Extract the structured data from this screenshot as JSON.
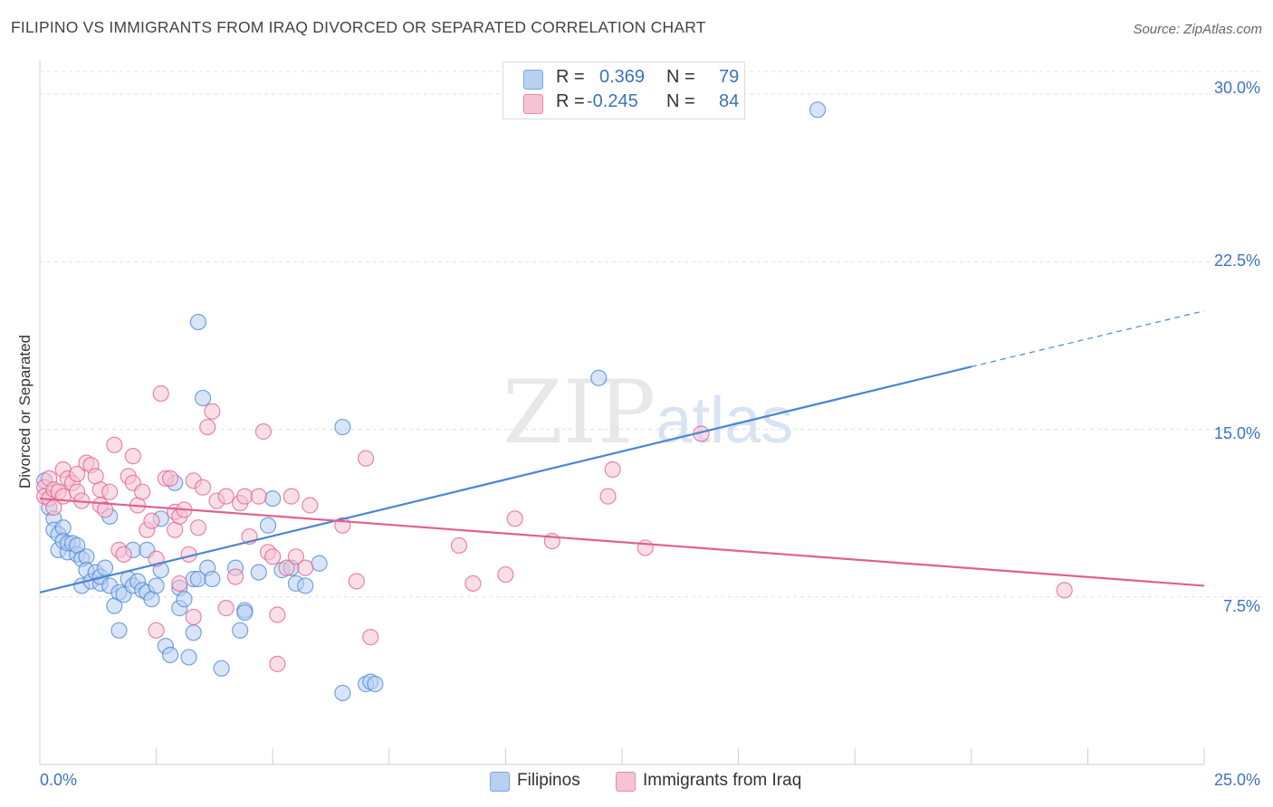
{
  "title": "FILIPINO VS IMMIGRANTS FROM IRAQ DIVORCED OR SEPARATED CORRELATION CHART",
  "source": "Source: ZipAtlas.com",
  "watermark": {
    "zip": "ZIP",
    "atlas": "atlas"
  },
  "legend": {
    "r_label": "R =",
    "n_label": "N =",
    "rows": [
      {
        "name": "Filipinos",
        "r": "0.369",
        "n": "79",
        "color": "#7ba7e0",
        "fill": "#b8d0f2"
      },
      {
        "name": "Immigrants from Iraq",
        "r": "-0.245",
        "n": "84",
        "color": "#e58aa8",
        "fill": "#f6c3d4"
      }
    ]
  },
  "chart_data": {
    "type": "scatter",
    "title": "FILIPINO VS IMMIGRANTS FROM IRAQ DIVORCED OR SEPARATED CORRELATION CHART",
    "xlabel": "",
    "ylabel": "Divorced or Separated",
    "xlim": [
      0,
      25
    ],
    "ylim": [
      0,
      31.5
    ],
    "x_tick_labels": [
      "0.0%",
      "25.0%"
    ],
    "y_tick_values": [
      7.5,
      15.0,
      22.5,
      30.0
    ],
    "y_tick_labels": [
      "7.5%",
      "15.0%",
      "22.5%",
      "30.0%"
    ],
    "grid": "horizontal dashed",
    "legend_position": "top-center",
    "series": [
      {
        "name": "Filipinos",
        "color": "#4a86d4",
        "fill": "#b8d0f2",
        "trend": {
          "x": [
            0,
            20,
            25
          ],
          "y": [
            7.7,
            17.8,
            20.3
          ],
          "solid_until": 20
        },
        "points": [
          [
            0.1,
            12.7
          ],
          [
            0.2,
            11.5
          ],
          [
            0.3,
            11.0
          ],
          [
            0.3,
            10.5
          ],
          [
            0.4,
            10.3
          ],
          [
            0.4,
            9.6
          ],
          [
            0.5,
            10.6
          ],
          [
            0.5,
            10.0
          ],
          [
            0.6,
            9.5
          ],
          [
            0.6,
            9.9
          ],
          [
            0.7,
            9.9
          ],
          [
            0.8,
            9.4
          ],
          [
            0.8,
            9.8
          ],
          [
            0.9,
            8.0
          ],
          [
            0.9,
            9.2
          ],
          [
            1.0,
            9.3
          ],
          [
            1.0,
            8.7
          ],
          [
            1.1,
            8.2
          ],
          [
            1.2,
            8.6
          ],
          [
            1.3,
            8.1
          ],
          [
            1.3,
            8.4
          ],
          [
            1.4,
            8.8
          ],
          [
            1.5,
            8.0
          ],
          [
            1.5,
            11.1
          ],
          [
            1.6,
            7.1
          ],
          [
            1.7,
            6.0
          ],
          [
            1.7,
            7.7
          ],
          [
            1.8,
            7.6
          ],
          [
            1.9,
            8.3
          ],
          [
            2.0,
            9.6
          ],
          [
            2.0,
            8.0
          ],
          [
            2.1,
            8.2
          ],
          [
            2.2,
            7.8
          ],
          [
            2.3,
            7.7
          ],
          [
            2.3,
            9.6
          ],
          [
            2.4,
            7.4
          ],
          [
            2.5,
            8.0
          ],
          [
            2.6,
            8.7
          ],
          [
            2.6,
            11.0
          ],
          [
            2.7,
            5.3
          ],
          [
            2.8,
            4.9
          ],
          [
            2.9,
            12.6
          ],
          [
            3.0,
            7.0
          ],
          [
            3.0,
            7.9
          ],
          [
            3.1,
            7.4
          ],
          [
            3.2,
            4.8
          ],
          [
            3.3,
            8.3
          ],
          [
            3.3,
            5.9
          ],
          [
            3.4,
            8.3
          ],
          [
            3.4,
            19.8
          ],
          [
            3.5,
            16.4
          ],
          [
            3.6,
            8.8
          ],
          [
            3.7,
            8.3
          ],
          [
            3.9,
            4.3
          ],
          [
            4.2,
            8.8
          ],
          [
            4.3,
            6.0
          ],
          [
            4.4,
            6.9
          ],
          [
            4.4,
            6.8
          ],
          [
            4.7,
            8.6
          ],
          [
            4.9,
            10.7
          ],
          [
            5.0,
            11.9
          ],
          [
            5.2,
            8.7
          ],
          [
            5.4,
            8.8
          ],
          [
            5.5,
            8.1
          ],
          [
            5.7,
            8.0
          ],
          [
            6.0,
            9.0
          ],
          [
            6.5,
            15.1
          ],
          [
            6.5,
            3.2
          ],
          [
            7.0,
            3.6
          ],
          [
            7.1,
            3.7
          ],
          [
            7.2,
            3.6
          ],
          [
            12.0,
            17.3
          ],
          [
            16.7,
            29.3
          ]
        ]
      },
      {
        "name": "Immigrants from Iraq",
        "color": "#e0608d",
        "fill": "#f6c3d4",
        "trend": {
          "x": [
            0,
            25
          ],
          "y": [
            11.9,
            8.0
          ],
          "solid_until": 25
        },
        "points": [
          [
            0.1,
            12.4
          ],
          [
            0.1,
            12.0
          ],
          [
            0.2,
            12.8
          ],
          [
            0.2,
            11.9
          ],
          [
            0.3,
            12.3
          ],
          [
            0.3,
            11.5
          ],
          [
            0.4,
            12.2
          ],
          [
            0.5,
            12.0
          ],
          [
            0.5,
            13.2
          ],
          [
            0.6,
            12.8
          ],
          [
            0.7,
            12.6
          ],
          [
            0.8,
            13.0
          ],
          [
            0.8,
            12.2
          ],
          [
            0.9,
            11.8
          ],
          [
            1.0,
            13.5
          ],
          [
            1.1,
            13.4
          ],
          [
            1.2,
            12.9
          ],
          [
            1.3,
            12.3
          ],
          [
            1.3,
            11.6
          ],
          [
            1.4,
            11.4
          ],
          [
            1.5,
            12.2
          ],
          [
            1.6,
            14.3
          ],
          [
            1.7,
            9.6
          ],
          [
            1.8,
            9.4
          ],
          [
            1.9,
            12.9
          ],
          [
            2.0,
            12.6
          ],
          [
            2.0,
            13.8
          ],
          [
            2.1,
            11.6
          ],
          [
            2.2,
            12.2
          ],
          [
            2.3,
            10.5
          ],
          [
            2.4,
            10.9
          ],
          [
            2.5,
            9.2
          ],
          [
            2.5,
            6.0
          ],
          [
            2.6,
            16.6
          ],
          [
            2.7,
            12.8
          ],
          [
            2.8,
            12.8
          ],
          [
            2.9,
            10.5
          ],
          [
            2.9,
            11.3
          ],
          [
            3.0,
            11.1
          ],
          [
            3.0,
            8.1
          ],
          [
            3.1,
            11.4
          ],
          [
            3.2,
            9.4
          ],
          [
            3.3,
            12.7
          ],
          [
            3.3,
            6.6
          ],
          [
            3.4,
            10.6
          ],
          [
            3.5,
            12.4
          ],
          [
            3.6,
            15.1
          ],
          [
            3.7,
            15.8
          ],
          [
            3.8,
            11.8
          ],
          [
            4.0,
            12.0
          ],
          [
            4.0,
            7.0
          ],
          [
            4.2,
            8.4
          ],
          [
            4.3,
            11.7
          ],
          [
            4.4,
            12.0
          ],
          [
            4.5,
            10.2
          ],
          [
            4.7,
            12.0
          ],
          [
            4.8,
            14.9
          ],
          [
            4.9,
            9.5
          ],
          [
            5.0,
            9.3
          ],
          [
            5.1,
            6.7
          ],
          [
            5.1,
            4.5
          ],
          [
            5.3,
            8.8
          ],
          [
            5.4,
            12.0
          ],
          [
            5.5,
            9.3
          ],
          [
            5.7,
            8.8
          ],
          [
            5.8,
            11.6
          ],
          [
            6.5,
            10.7
          ],
          [
            6.8,
            8.2
          ],
          [
            7.0,
            13.7
          ],
          [
            7.1,
            5.7
          ],
          [
            9.0,
            9.8
          ],
          [
            9.3,
            8.1
          ],
          [
            10.0,
            8.5
          ],
          [
            10.2,
            11.0
          ],
          [
            11.0,
            10.0
          ],
          [
            12.2,
            12.0
          ],
          [
            12.3,
            13.2
          ],
          [
            13.0,
            9.7
          ],
          [
            14.2,
            14.8
          ],
          [
            22.0,
            7.8
          ]
        ]
      }
    ]
  }
}
